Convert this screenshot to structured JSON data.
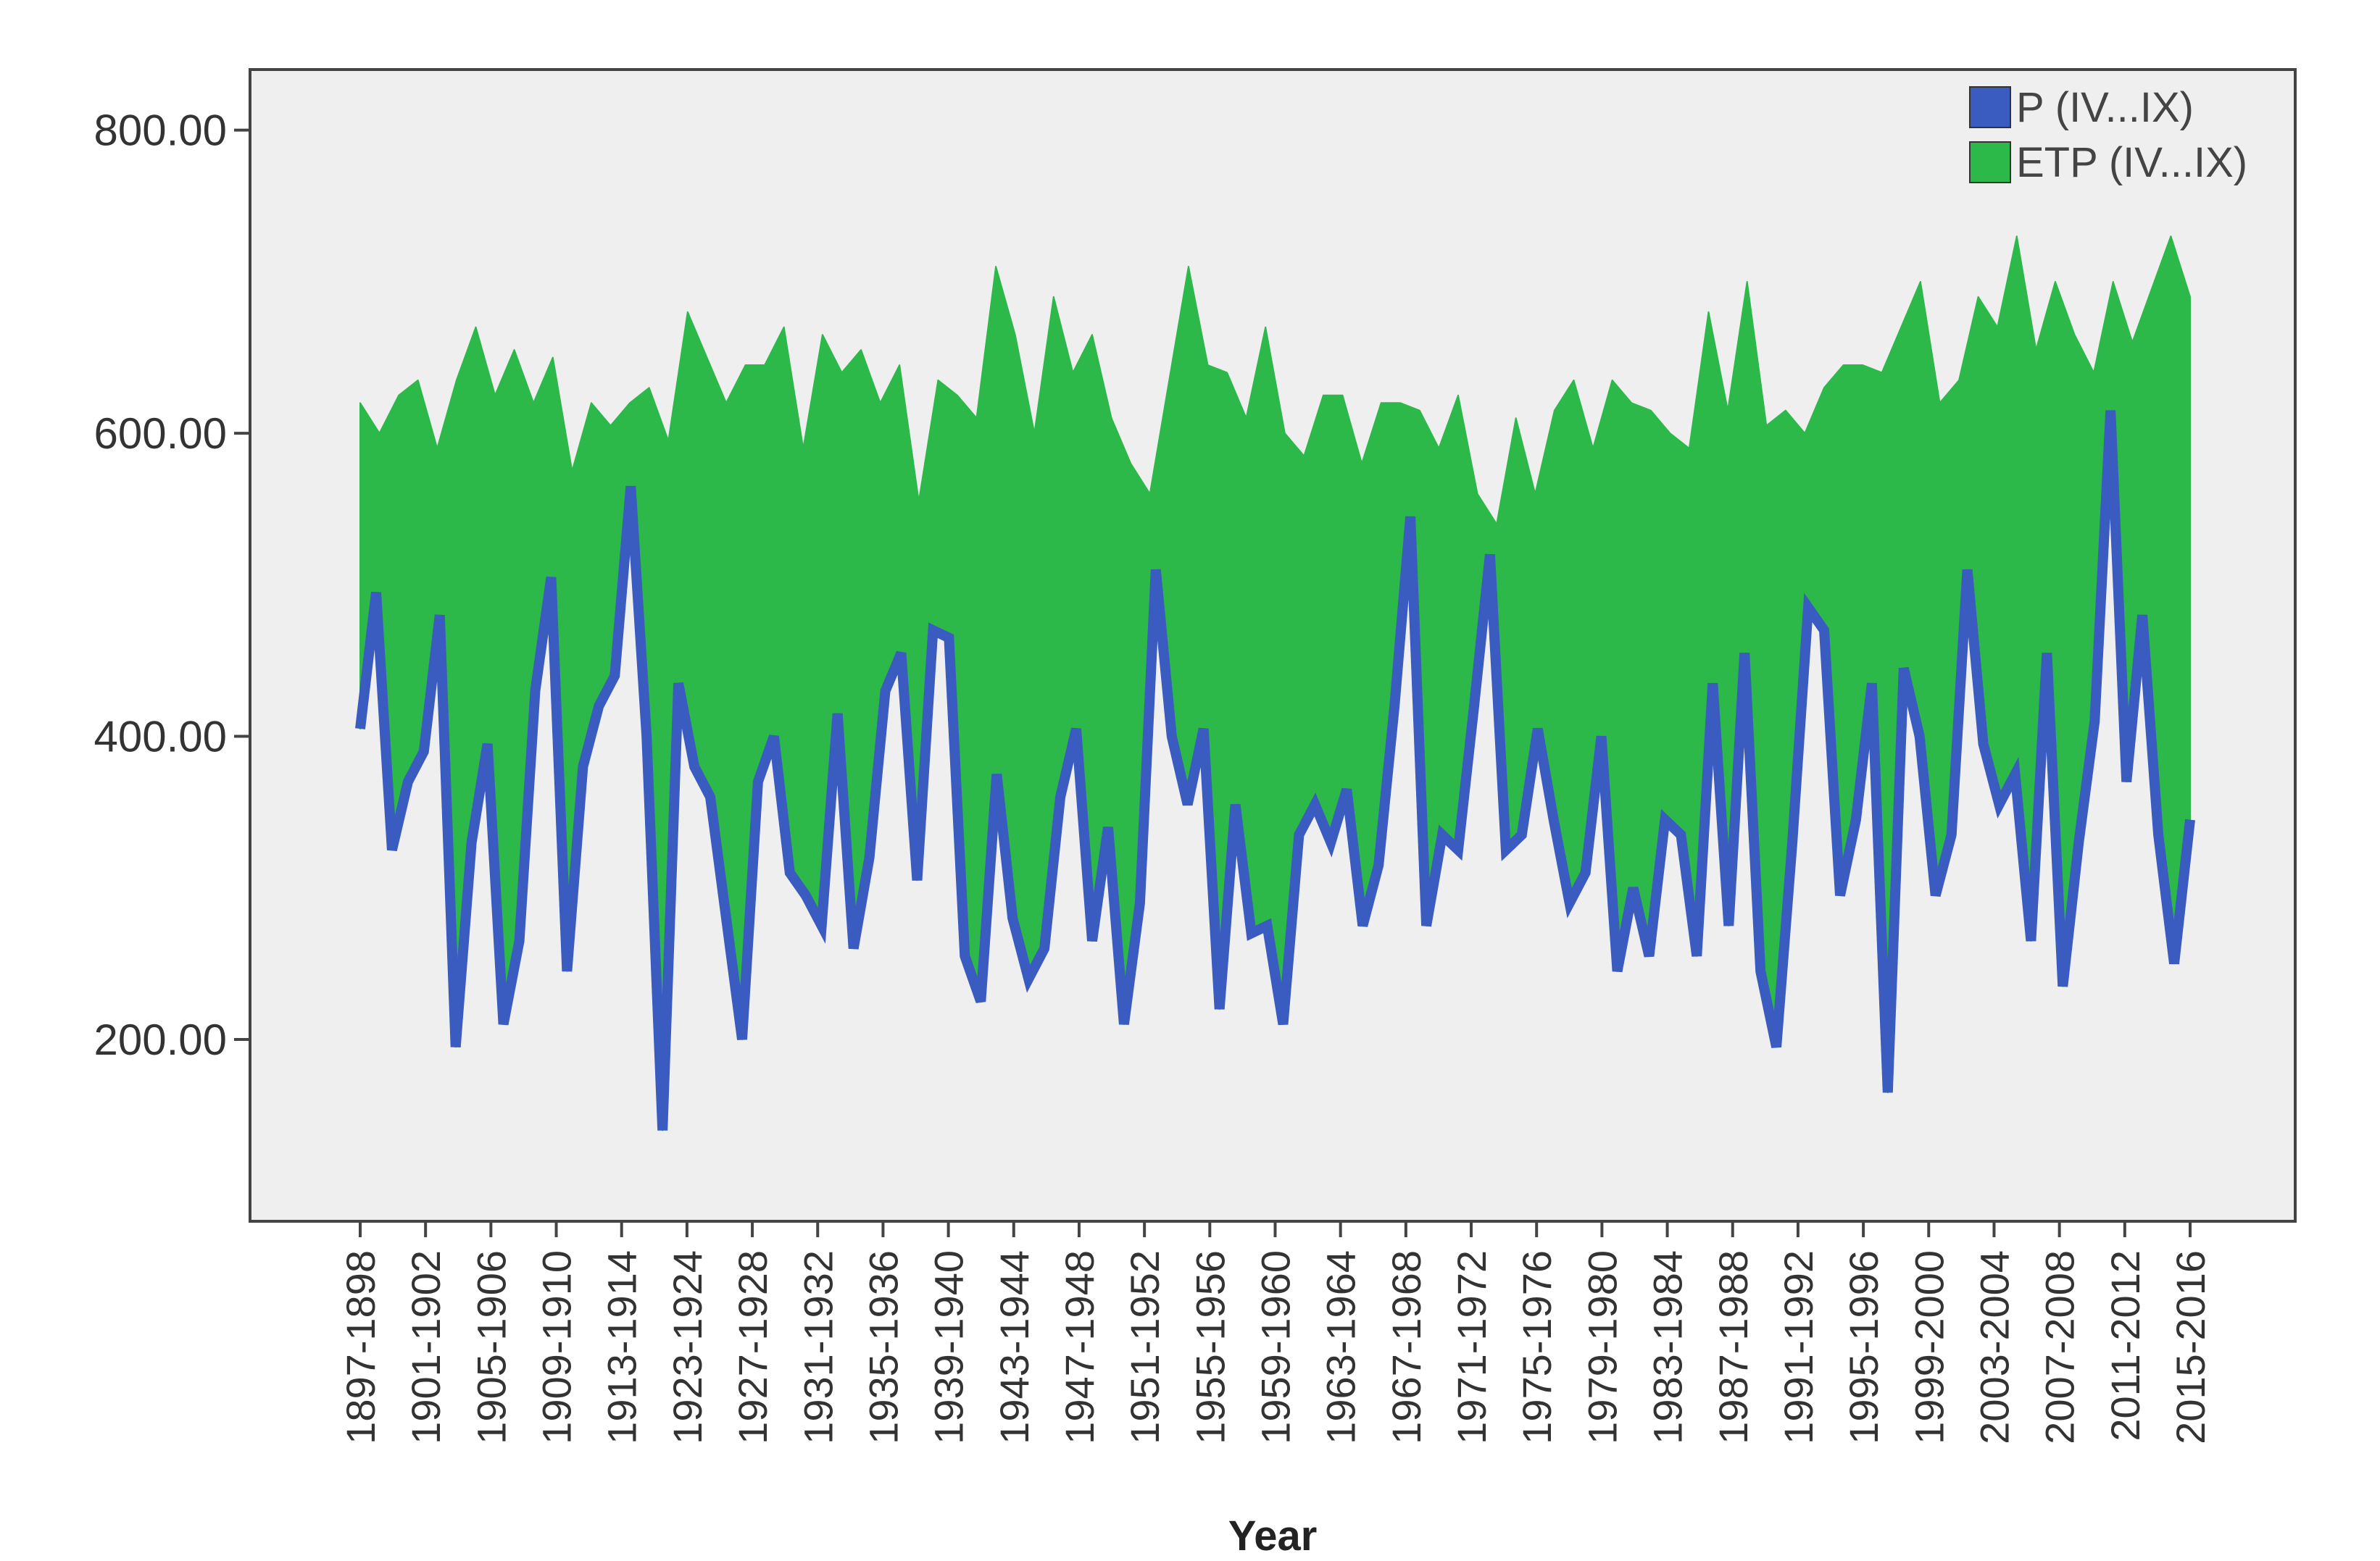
{
  "chart_data": {
    "type": "area",
    "xlabel": "Year",
    "ylabel": "",
    "ylim": [
      80,
      840
    ],
    "yticks": [
      "200.00",
      "400.00",
      "600.00",
      "800.00"
    ],
    "grid": false,
    "legend_position": "top-right",
    "colors": {
      "P": "#3a5bbf",
      "ETP": "#2db84a",
      "plot_background": "#efefef"
    },
    "x_tick_labels": [
      "1897-1898",
      "1901-1902",
      "1905-1906",
      "1909-1910",
      "1913-1914",
      "1923-1924",
      "1927-1928",
      "1931-1932",
      "1935-1936",
      "1939-1940",
      "1943-1944",
      "1947-1948",
      "1951-1952",
      "1955-1956",
      "1959-1960",
      "1963-1964",
      "1967-1968",
      "1971-1972",
      "1975-1976",
      "1979-1980",
      "1983-1984",
      "1987-1988",
      "1991-1992",
      "1995-1996",
      "1999-2000",
      "2003-2004",
      "2007-2008",
      "2011-2012",
      "2015-2016"
    ],
    "series": [
      {
        "name": "P (IV...IX)",
        "type": "line",
        "values": [
          405,
          495,
          325,
          370,
          390,
          480,
          195,
          330,
          395,
          210,
          265,
          430,
          505,
          245,
          380,
          420,
          440,
          565,
          400,
          140,
          435,
          380,
          360,
          280,
          200,
          370,
          400,
          310,
          295,
          275,
          415,
          260,
          320,
          430,
          455,
          305,
          470,
          465,
          255,
          225,
          375,
          280,
          240,
          260,
          360,
          405,
          265,
          340,
          210,
          290,
          510,
          400,
          355,
          405,
          220,
          355,
          270,
          275,
          210,
          335,
          355,
          330,
          365,
          275,
          315,
          420,
          545,
          275,
          335,
          325,
          420,
          520,
          325,
          335,
          405,
          345,
          290,
          310,
          400,
          245,
          300,
          255,
          345,
          335,
          255,
          435,
          275,
          455,
          245,
          195,
          330,
          485,
          470,
          295,
          345,
          435,
          165,
          445,
          400,
          295,
          335,
          510,
          395,
          355,
          375,
          265,
          455,
          235,
          330,
          410,
          615,
          370,
          480,
          335,
          250,
          345
        ]
      },
      {
        "name": "ETP (IV...IX)",
        "type": "area",
        "values": [
          620,
          600,
          625,
          635,
          590,
          635,
          670,
          625,
          655,
          620,
          650,
          575,
          620,
          605,
          620,
          630,
          595,
          680,
          650,
          620,
          645,
          645,
          670,
          590,
          665,
          640,
          655,
          620,
          645,
          555,
          635,
          625,
          610,
          710,
          665,
          600,
          690,
          640,
          665,
          610,
          580,
          560,
          635,
          710,
          645,
          640,
          610,
          670,
          600,
          585,
          625,
          625,
          580,
          620,
          620,
          615,
          590,
          625,
          560,
          540,
          610,
          560,
          615,
          635,
          590,
          635,
          620,
          615,
          600,
          590,
          680,
          615,
          700,
          605,
          615,
          600,
          630,
          645,
          645,
          640,
          670,
          700,
          620,
          635,
          690,
          670,
          730,
          655,
          700,
          665,
          640,
          700,
          660,
          695,
          730,
          690
        ]
      }
    ]
  }
}
